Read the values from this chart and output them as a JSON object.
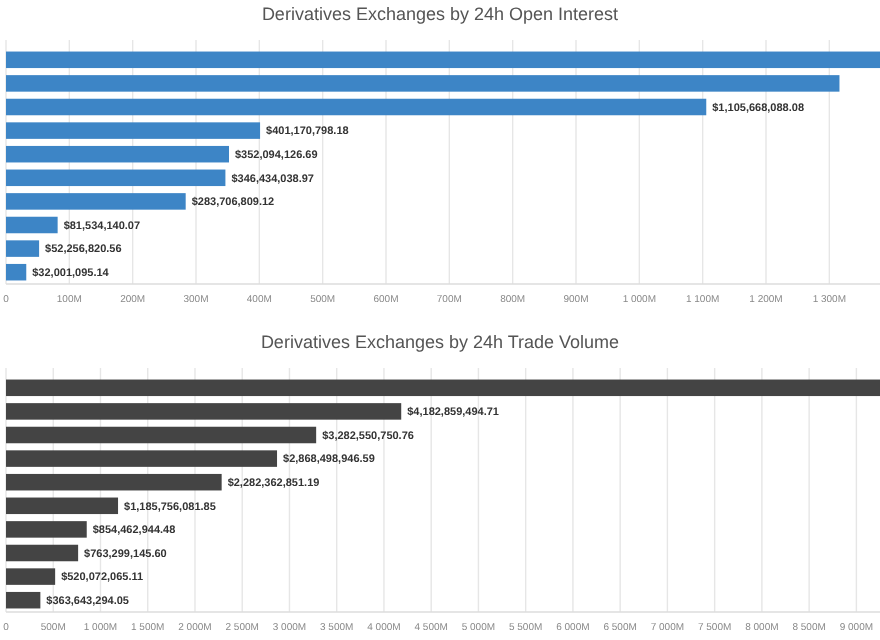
{
  "chart_data": [
    {
      "type": "bar",
      "orientation": "horizontal",
      "title": "Derivatives Exchanges by 24h Open Interest",
      "categories": [
        null,
        null,
        null,
        null,
        null,
        null,
        null,
        null,
        null,
        null
      ],
      "color": "#3d85c6",
      "values": [
        1380000000,
        1316000000,
        1105668088.08,
        401170798.18,
        352094126.69,
        346434038.97,
        283706809.12,
        81534140.07,
        52256820.56,
        32001095.14
      ],
      "value_labels": [
        null,
        null,
        "$1,105,668,088.08",
        "$401,170,798.18",
        "$352,094,126.69",
        "$346,434,038.97",
        "$283,706,809.12",
        "$81,534,140.07",
        "$52,256,820.56",
        "$32,001,095.14"
      ],
      "xlim": [
        0,
        1380000000
      ],
      "xticks": [
        0,
        {
          "value": 100000000,
          "label": "100M"
        },
        {
          "value": 200000000,
          "label": "200M"
        },
        {
          "value": 300000000,
          "label": "300M"
        },
        {
          "value": 400000000,
          "label": "400M"
        },
        {
          "value": 500000000,
          "label": "500M"
        },
        {
          "value": 600000000,
          "label": "600M"
        },
        {
          "value": 700000000,
          "label": "700M"
        },
        {
          "value": 800000000,
          "label": "800M"
        },
        {
          "value": 900000000,
          "label": "900M"
        },
        {
          "value": 1000000000,
          "label": "1 000M"
        },
        {
          "value": 1100000000,
          "label": "1 100M"
        },
        {
          "value": 1200000000,
          "label": "1 200M"
        },
        {
          "value": 1300000000,
          "label": "1 300M"
        }
      ],
      "grid": "x"
    },
    {
      "type": "bar",
      "orientation": "horizontal",
      "title": "Derivatives Exchanges by 24h Trade Volume",
      "categories": [
        null,
        null,
        null,
        null,
        null,
        null,
        null,
        null,
        null,
        null
      ],
      "color": "#444444",
      "values": [
        9250000000,
        4182859494.71,
        3282550750.76,
        2868498946.59,
        2282362851.19,
        1185756081.85,
        854462944.48,
        763299145.6,
        520072065.11,
        363643294.05
      ],
      "value_labels": [
        null,
        "$4,182,859,494.71",
        "$3,282,550,750.76",
        "$2,868,498,946.59",
        "$2,282,362,851.19",
        "$1,185,756,081.85",
        "$854,462,944.48",
        "$763,299,145.60",
        "$520,072,065.11",
        "$363,643,294.05"
      ],
      "xlim": [
        0,
        9250000000
      ],
      "xticks": [
        0,
        {
          "value": 500000000,
          "label": "500M"
        },
        {
          "value": 1000000000,
          "label": "1 000M"
        },
        {
          "value": 1500000000,
          "label": "1 500M"
        },
        {
          "value": 2000000000,
          "label": "2 000M"
        },
        {
          "value": 2500000000,
          "label": "2 500M"
        },
        {
          "value": 3000000000,
          "label": "3 000M"
        },
        {
          "value": 3500000000,
          "label": "3 500M"
        },
        {
          "value": 4000000000,
          "label": "4 000M"
        },
        {
          "value": 4500000000,
          "label": "4 500M"
        },
        {
          "value": 5000000000,
          "label": "5 000M"
        },
        {
          "value": 5500000000,
          "label": "5 500M"
        },
        {
          "value": 6000000000,
          "label": "6 000M"
        },
        {
          "value": 6500000000,
          "label": "6 500M"
        },
        {
          "value": 7000000000,
          "label": "7 000M"
        },
        {
          "value": 7500000000,
          "label": "7 500M"
        },
        {
          "value": 8000000000,
          "label": "8 000M"
        },
        {
          "value": 8500000000,
          "label": "8 500M"
        },
        {
          "value": 9000000000,
          "label": "9 000M"
        }
      ],
      "grid": "x"
    }
  ]
}
